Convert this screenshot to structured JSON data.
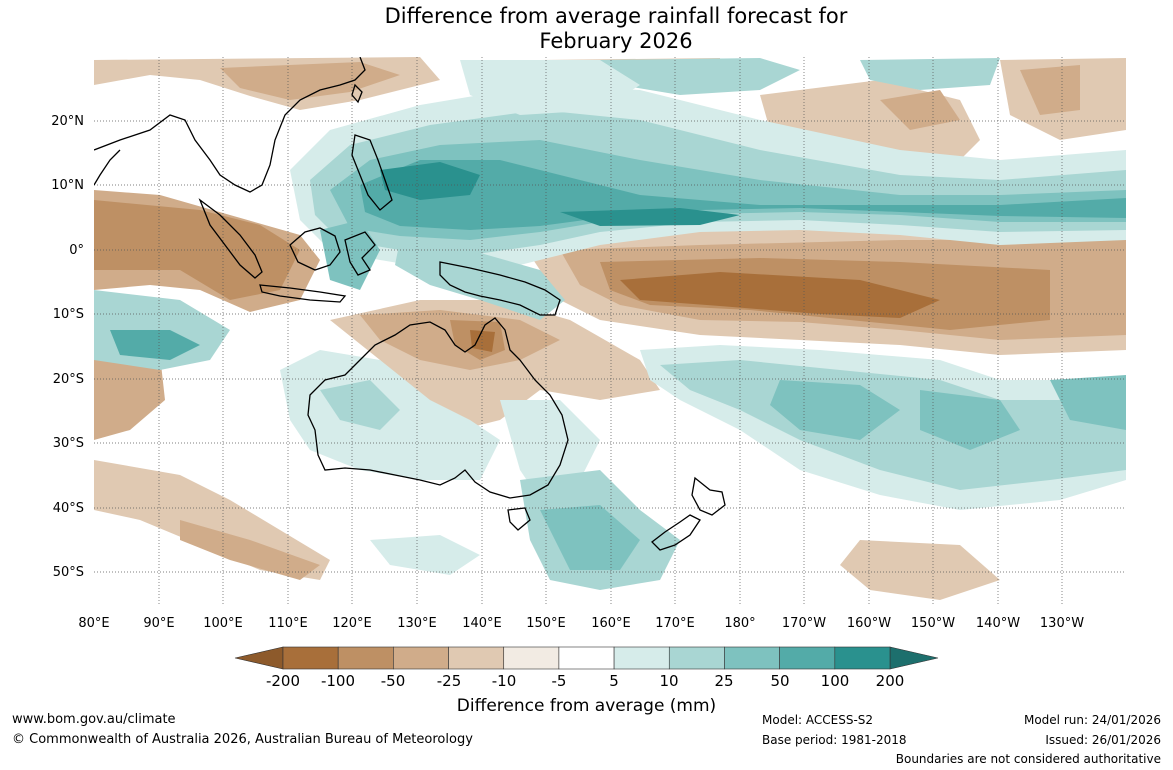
{
  "title": {
    "line1": "Difference from average rainfall forecast for",
    "line2": "February 2026"
  },
  "map": {
    "region": "Australia and surrounding regions",
    "lat_labels": [
      "20°N",
      "10°N",
      "0°",
      "10°S",
      "20°S",
      "30°S",
      "40°S",
      "50°S"
    ],
    "lon_labels": [
      "80°E",
      "90°E",
      "100°E",
      "110°E",
      "120°E",
      "130°E",
      "140°E",
      "150°E",
      "160°E",
      "170°E",
      "180°",
      "170°W",
      "160°W",
      "150°W",
      "140°W",
      "130°W"
    ]
  },
  "colorbar": {
    "ticks": [
      "-200",
      "-100",
      "-50",
      "-25",
      "-10",
      "-5",
      "5",
      "10",
      "25",
      "50",
      "100",
      "200"
    ],
    "colors": [
      "#a86f3a",
      "#be9064",
      "#d0ac8a",
      "#e0c9b2",
      "#f2ebe3",
      "#ffffff",
      "#d6ecea",
      "#a9d6d3",
      "#7ec2bf",
      "#53aba8",
      "#2a918e"
    ],
    "extend_low_color": "#8d5a2b",
    "extend_high_color": "#1d6f6d",
    "label": "Difference from average (mm)"
  },
  "footer": {
    "website": "www.bom.gov.au/climate",
    "copyright": "© Commonwealth of Australia 2026, Australian Bureau of Meteorology",
    "model": "Model: ACCESS-S2",
    "base_period": "Base period: 1981-2018",
    "model_run": "Model run: 24/01/2026",
    "issued": "Issued: 26/01/2026",
    "disclaimer": "Boundaries are not considered authoritative"
  }
}
